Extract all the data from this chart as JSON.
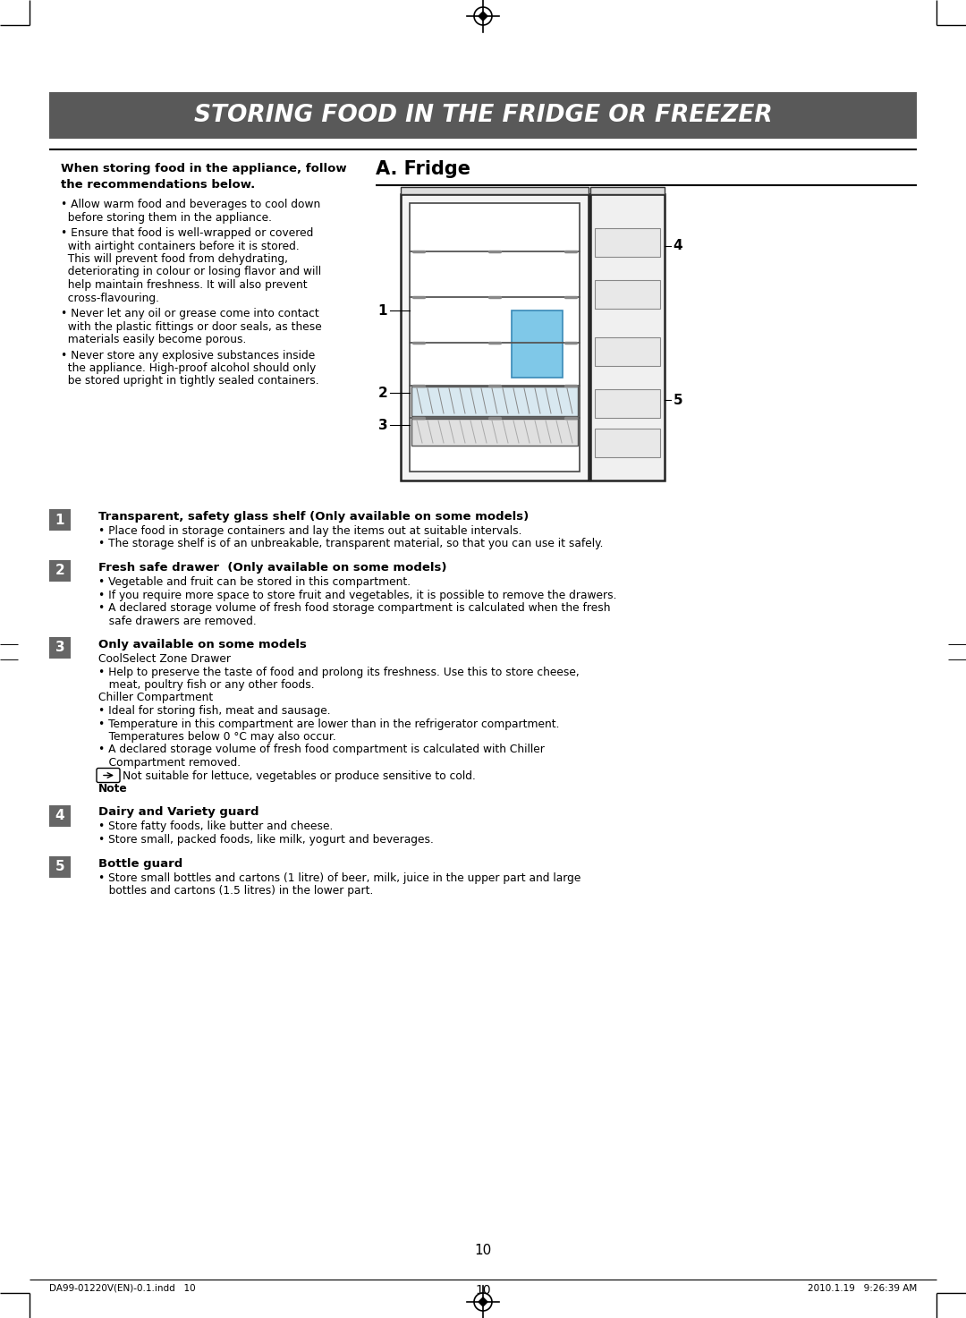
{
  "page_bg": "#ffffff",
  "header_bg": "#595959",
  "header_text": "STORING FOOD IN THE FRIDGE OR FREEZER",
  "header_text_color": "#ffffff",
  "section_a_title": "A. Fridge",
  "left_col_bold_title": "When storing food in the appliance, follow\nthe recommendations below.",
  "left_bullets": [
    "Allow warm food and beverages to cool down\n before storing them in the appliance.",
    "Ensure that food is well-wrapped or covered\n with airtight containers before it is stored.\n This will prevent food from dehydrating,\n deteriorating in colour or losing flavor and will\n help maintain freshness. It will also prevent\n cross-flavouring.",
    "Never let any oil or grease come into contact\n with the plastic fittings or door seals, as these\n materials easily become porous.",
    "Never store any explosive substances inside\n the appliance. High-proof alcohol should only\n be stored upright in tightly sealed containers."
  ],
  "numbered_sections": [
    {
      "num": "1",
      "title": "Transparent, safety glass shelf (Only available on some models)",
      "lines": [
        "• Place food in storage containers and lay the items out at suitable intervals.",
        "• The storage shelf is of an unbreakable, transparent material, so that you can use it safely."
      ]
    },
    {
      "num": "2",
      "title": "Fresh safe drawer  (Only available on some models)",
      "lines": [
        "• Vegetable and fruit can be stored in this compartment.",
        "• If you require more space to store fruit and vegetables, it is possible to remove the drawers.",
        "• A declared storage volume of fresh food storage compartment is calculated when the fresh",
        "   safe drawers are removed."
      ]
    },
    {
      "num": "3",
      "title": "Only available on some models",
      "lines": [
        "CoolSelect Zone Drawer",
        "• Help to preserve the taste of food and prolong its freshness. Use this to store cheese,",
        "   meat, poultry fish or any other foods.",
        "Chiller Compartment",
        "• Ideal for storing fish, meat and sausage.",
        "• Temperature in this compartment are lower than in the refrigerator compartment.",
        "   Temperatures below 0 °C may also occur.",
        "• A declared storage volume of fresh food compartment is calculated with Chiller",
        "   Compartment removed.",
        "NOTE Not suitable for lettuce, vegetables or produce sensitive to cold.",
        "NOTE_LABEL Note"
      ]
    },
    {
      "num": "4",
      "title": "Dairy and Variety guard",
      "lines": [
        "• Store fatty foods, like butter and cheese.",
        "• Store small, packed foods, like milk, yogurt and beverages."
      ]
    },
    {
      "num": "5",
      "title": "Bottle guard",
      "lines": [
        "• Store small bottles and cartons (1 litre) of beer, milk, juice in the upper part and large",
        "   bottles and cartons (1.5 litres) in the lower part."
      ]
    }
  ],
  "page_number": "10",
  "footer_left": "DA99-01220V(EN)-0.1.indd   10",
  "footer_right": "2010.1.19   9:26:39 AM",
  "badge_bg": "#666666",
  "badge_fg": "#ffffff"
}
